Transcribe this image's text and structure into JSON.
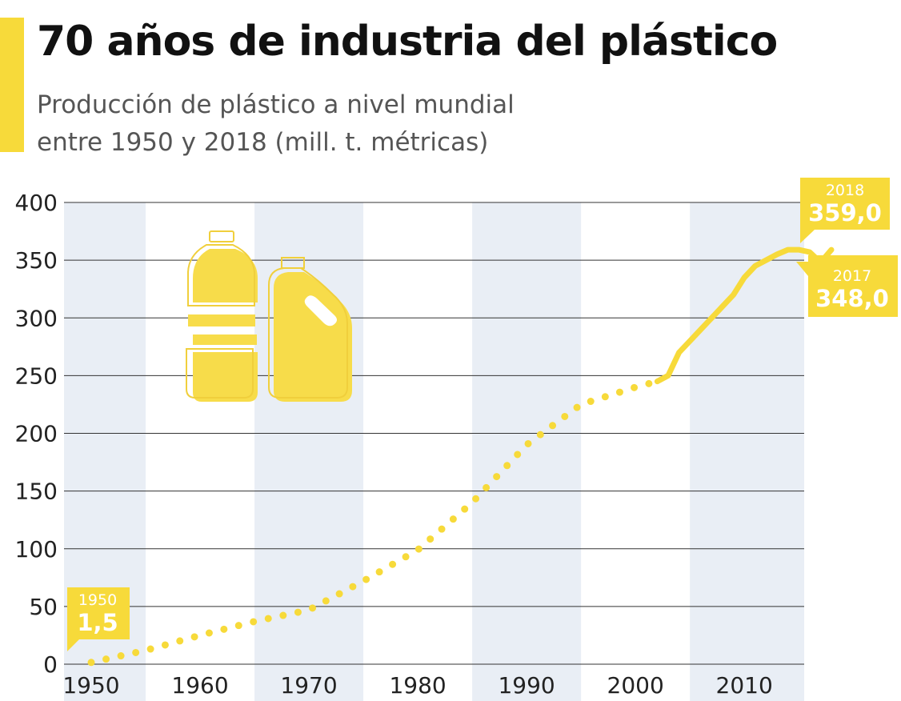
{
  "header": {
    "title": "70 años de industria del plástico",
    "subtitle_line1": "Producción de plástico a nivel mundial",
    "subtitle_line2": "entre 1950 y 2018 (mill. t. métricas)"
  },
  "colors": {
    "accent": "#f7da3a",
    "band": "#e9eef5",
    "grid": "#333333",
    "icon_fill": "#f7dc4a",
    "icon_stroke": "#f0cf3c"
  },
  "icons": [
    "bottle-icon",
    "jerrycan-icon"
  ],
  "chart_data": {
    "type": "line",
    "title": "70 años de industria del plástico",
    "xlabel": "",
    "ylabel": "",
    "xlim": [
      1947.5,
      2015.5
    ],
    "ylim": [
      0,
      400
    ],
    "yticks": [
      0,
      50,
      100,
      150,
      200,
      250,
      300,
      350,
      400
    ],
    "xticks": [
      {
        "label": "1950",
        "value": 1950
      },
      {
        "label": "1960",
        "value": 1960
      },
      {
        "label": "1970",
        "value": 1970
      },
      {
        "label": "1980",
        "value": 1980
      },
      {
        "label": "1990",
        "value": 1990
      },
      {
        "label": "2000",
        "value": 2000
      },
      {
        "label": "2010",
        "value": 2010
      }
    ],
    "grid": true,
    "series": [
      {
        "style": "dotted",
        "x": [
          1950,
          1955,
          1960,
          1965,
          1970,
          1975,
          1980,
          1985,
          1990,
          1995,
          2000,
          2002
        ],
        "values": [
          1.5,
          12,
          25,
          37,
          47,
          72,
          99,
          140,
          190,
          225,
          240,
          245
        ]
      },
      {
        "style": "solid",
        "x": [
          2002,
          2003,
          2004,
          2005,
          2006,
          2007,
          2008,
          2009,
          2010,
          2011,
          2012,
          2013,
          2014,
          2015,
          2016,
          2017,
          2018
        ],
        "values": [
          245,
          250,
          270,
          280,
          290,
          300,
          310,
          320,
          335,
          345,
          350,
          355,
          359,
          359,
          357,
          348,
          359
        ]
      }
    ],
    "annotations": [
      {
        "year": "1950",
        "value": "1,5"
      },
      {
        "year": "2018",
        "value": "359,0"
      },
      {
        "year": "2017",
        "value": "348,0"
      }
    ]
  }
}
